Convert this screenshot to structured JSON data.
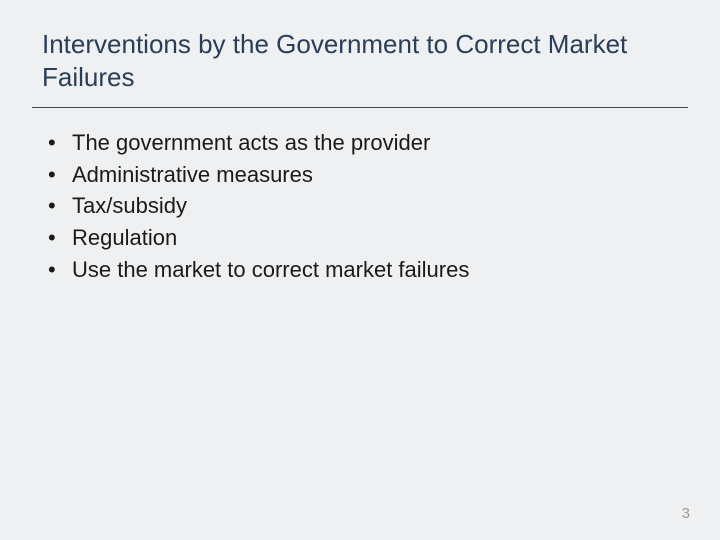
{
  "slide": {
    "title": "Interventions by the Government to Correct Market Failures",
    "bullets": [
      "The government acts as the provider",
      "Administrative measures",
      "Tax/subsidy",
      "Regulation",
      "Use the market to correct market failures"
    ],
    "page_number": "3",
    "colors": {
      "background": "#eef0f2",
      "title_color": "#2a3e57",
      "body_color": "#1a1a1a",
      "divider_color": "#3a4a5e",
      "page_number_color": "#9a9a9a"
    },
    "typography": {
      "title_fontsize": 26,
      "body_fontsize": 22,
      "page_number_fontsize": 15,
      "font_family": "Arial"
    }
  }
}
